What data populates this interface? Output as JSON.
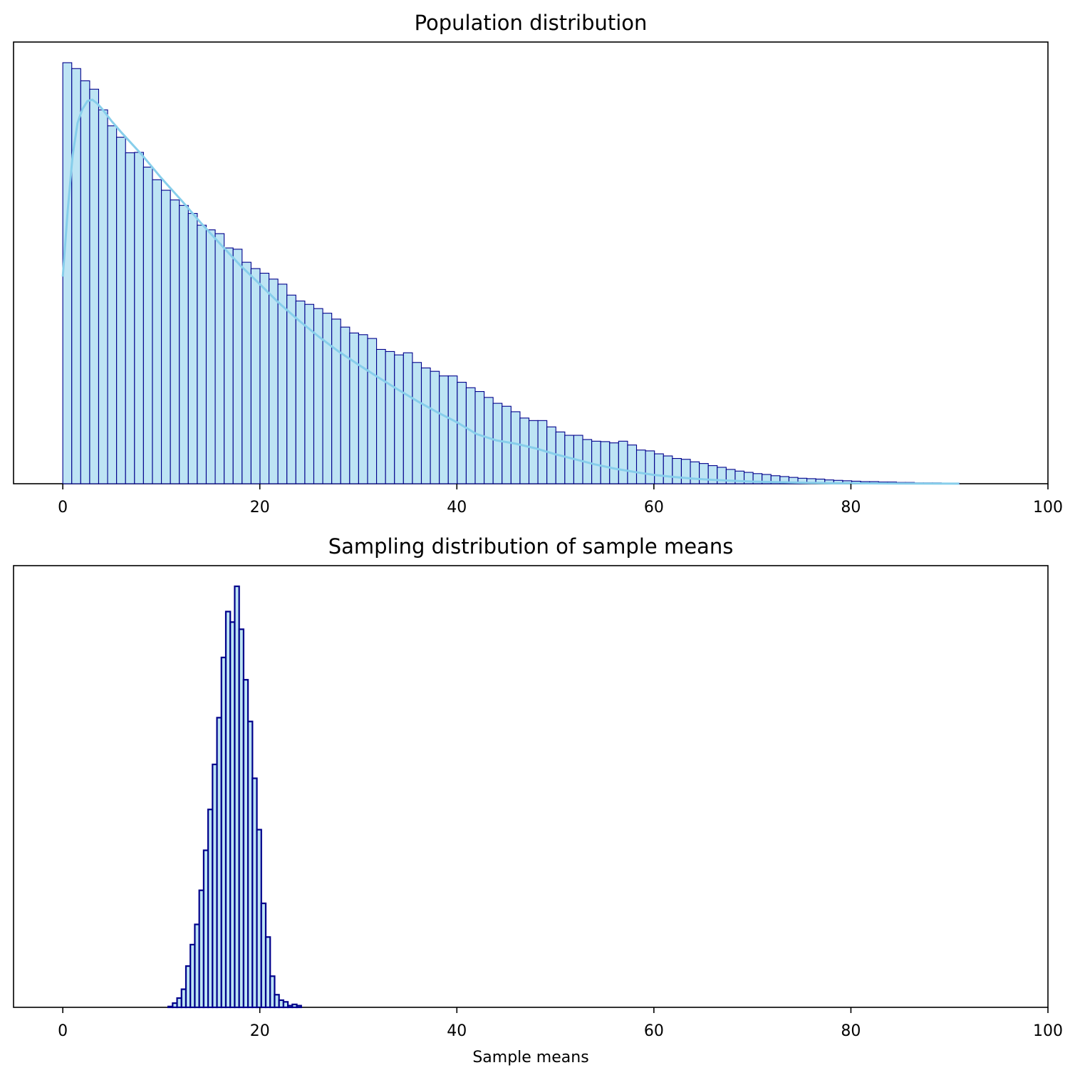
{
  "chart_data": [
    {
      "type": "bar",
      "title": "Population distribution",
      "xlabel": "",
      "ylabel": "",
      "xlim": [
        -5,
        100
      ],
      "xticks": [
        "0",
        "20",
        "40",
        "60",
        "80",
        "100"
      ],
      "yticks_visible": false,
      "grid": false,
      "bin_start": 0,
      "bin_width": 0.91,
      "relative_heights": [
        1.0,
        0.986,
        0.957,
        0.937,
        0.888,
        0.85,
        0.823,
        0.786,
        0.787,
        0.752,
        0.722,
        0.697,
        0.674,
        0.661,
        0.642,
        0.614,
        0.603,
        0.594,
        0.56,
        0.557,
        0.526,
        0.511,
        0.5,
        0.486,
        0.474,
        0.448,
        0.434,
        0.426,
        0.416,
        0.405,
        0.391,
        0.372,
        0.358,
        0.354,
        0.345,
        0.319,
        0.314,
        0.306,
        0.311,
        0.288,
        0.275,
        0.267,
        0.256,
        0.256,
        0.241,
        0.228,
        0.219,
        0.205,
        0.191,
        0.184,
        0.171,
        0.156,
        0.15,
        0.15,
        0.135,
        0.123,
        0.115,
        0.115,
        0.105,
        0.101,
        0.1,
        0.097,
        0.101,
        0.092,
        0.08,
        0.078,
        0.071,
        0.066,
        0.06,
        0.058,
        0.052,
        0.048,
        0.043,
        0.039,
        0.034,
        0.03,
        0.027,
        0.024,
        0.022,
        0.019,
        0.017,
        0.015,
        0.013,
        0.012,
        0.011,
        0.009,
        0.008,
        0.007,
        0.006,
        0.005,
        0.005,
        0.004,
        0.004,
        0.003,
        0.003,
        0.002,
        0.002,
        0.002,
        0.001,
        0.001
      ],
      "kde": {
        "x": [
          0,
          0.5,
          1,
          1.5,
          2,
          2.5,
          3,
          3.5,
          4,
          5,
          6,
          8,
          10,
          12,
          14,
          16,
          18,
          20,
          22,
          24,
          26,
          28,
          30,
          32,
          34,
          36,
          38,
          40,
          42,
          44,
          46,
          48,
          50,
          52,
          54,
          56,
          58,
          60,
          62,
          64,
          66,
          68,
          70,
          72,
          74,
          76,
          78,
          80,
          85,
          91
        ],
        "y": [
          0.492,
          0.649,
          0.78,
          0.857,
          0.89,
          0.909,
          0.912,
          0.903,
          0.89,
          0.86,
          0.833,
          0.782,
          0.726,
          0.674,
          0.62,
          0.569,
          0.519,
          0.474,
          0.428,
          0.387,
          0.349,
          0.314,
          0.283,
          0.253,
          0.224,
          0.196,
          0.17,
          0.146,
          0.118,
          0.103,
          0.095,
          0.084,
          0.07,
          0.058,
          0.046,
          0.036,
          0.028,
          0.021,
          0.016,
          0.012,
          0.009,
          0.007,
          0.005,
          0.004,
          0.003,
          0.002,
          0.001,
          0.001,
          0.0005,
          0.0002
        ]
      },
      "colors": {
        "fill": "#bde4f4",
        "edge": "#00008b",
        "line": "#87ceeb"
      }
    },
    {
      "type": "bar",
      "title": "Sampling distribution of sample means",
      "xlabel": "Sample means",
      "ylabel": "",
      "xlim": [
        -5,
        100
      ],
      "xticks": [
        "0",
        "20",
        "40",
        "60",
        "80",
        "100"
      ],
      "yticks_visible": false,
      "grid": false,
      "bin_start": 10.7,
      "bin_width": 0.45,
      "relative_heights": [
        0.002,
        0.01,
        0.022,
        0.043,
        0.098,
        0.149,
        0.197,
        0.278,
        0.373,
        0.47,
        0.577,
        0.688,
        0.831,
        0.94,
        0.915,
        1.0,
        0.898,
        0.778,
        0.679,
        0.544,
        0.422,
        0.247,
        0.167,
        0.074,
        0.03,
        0.017,
        0.013,
        0.004,
        0.007,
        0.004
      ],
      "colors": {
        "fill": "#bde4f4",
        "edge": "#00008b"
      }
    }
  ]
}
